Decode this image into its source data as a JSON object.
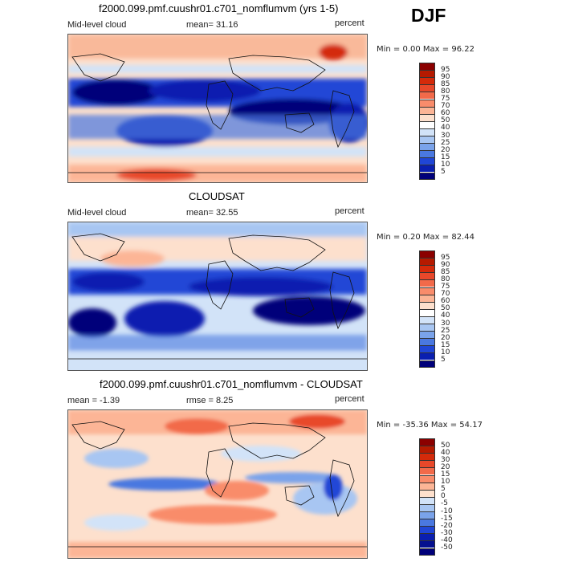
{
  "season": "DJF",
  "panels": [
    {
      "title": "f2000.099.pmf.cuushr01.c701_nomflumvm (yrs 1-5)",
      "left_label": "Mid-level cloud",
      "mean_label": "mean=  31.16",
      "units": "percent",
      "minmax": "Min =   0.00 Max =  96.22",
      "kind": "abs"
    },
    {
      "title": "CLOUDSAT",
      "left_label": "Mid-level cloud",
      "mean_label": "mean=  32.55",
      "units": "percent",
      "minmax": "Min =   0.20 Max =  82.44",
      "kind": "abs"
    },
    {
      "title": "f2000.099.pmf.cuushr01.c701_nomflumvm - CLOUDSAT",
      "left_label": "mean =  -1.39",
      "mean_label": "rmse =   8.25",
      "units": "percent",
      "minmax": "Min = -35.36 Max =  54.17",
      "kind": "diff"
    }
  ],
  "colorbars": {
    "abs": {
      "labels": [
        "95",
        "90",
        "85",
        "80",
        "75",
        "70",
        "60",
        "50",
        "40",
        "30",
        "25",
        "20",
        "15",
        "10",
        "5"
      ],
      "colors": [
        "#8b0000",
        "#b51a00",
        "#d42a0a",
        "#e8482a",
        "#f26a4a",
        "#f98c6b",
        "#fcb596",
        "#fde0cd",
        "#ffffff",
        "#d2e3f8",
        "#a8c6f2",
        "#7aa3ea",
        "#4a78e0",
        "#2046d6",
        "#0a1fb0",
        "#00007a"
      ]
    },
    "diff": {
      "labels": [
        "50",
        "40",
        "30",
        "20",
        "15",
        "10",
        "5",
        "0",
        "-5",
        "-10",
        "-15",
        "-20",
        "-30",
        "-40",
        "-50"
      ],
      "colors": [
        "#8b0000",
        "#b51a00",
        "#d42a0a",
        "#e8482a",
        "#f26a4a",
        "#f98c6b",
        "#fcb596",
        "#fde0cd",
        "#d2e3f8",
        "#a8c6f2",
        "#7aa3ea",
        "#4a78e0",
        "#2046d6",
        "#0a1fb0",
        "#06118f",
        "#00007a"
      ]
    }
  }
}
